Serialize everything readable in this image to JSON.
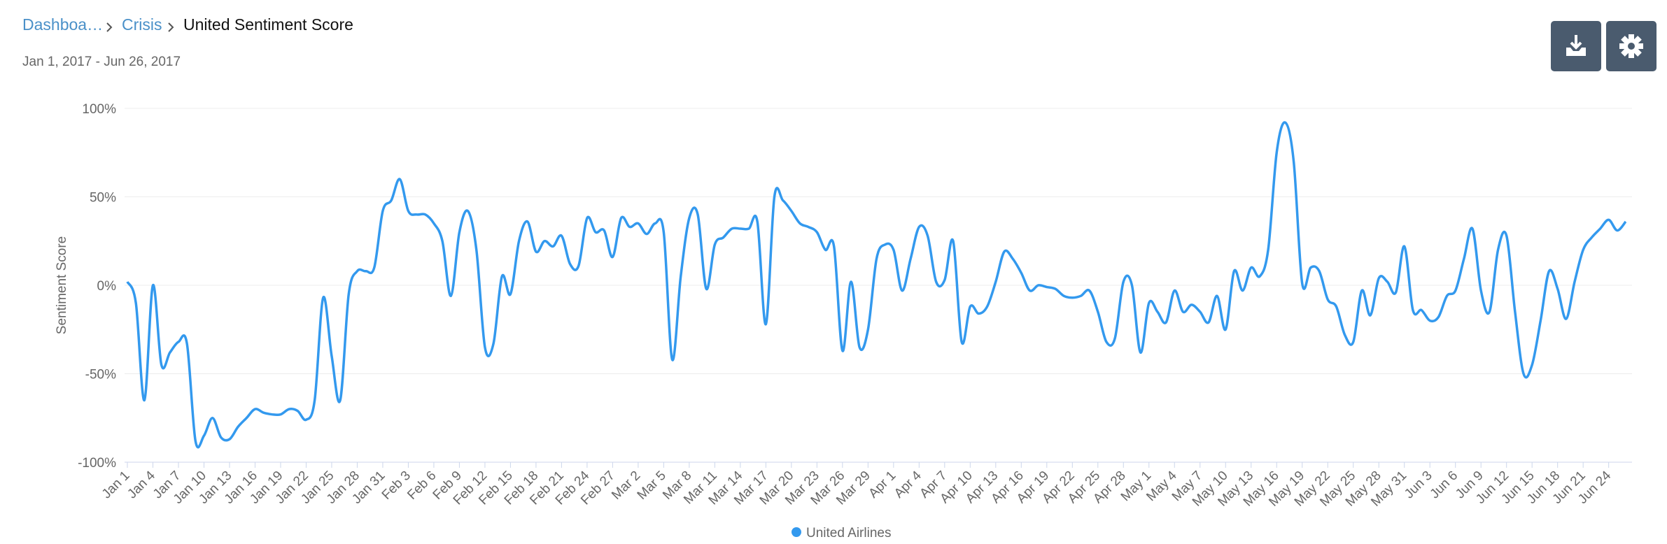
{
  "breadcrumb": [
    "Dashboa…",
    "Crisis",
    "United Sentiment Score"
  ],
  "date_range": "Jan 1, 2017 - Jun 26, 2017",
  "chart_data": {
    "type": "line",
    "y_label": "Sentiment Score",
    "ylim": [
      -100,
      100
    ],
    "yticks": [
      {
        "value": -100,
        "label": "-100%"
      },
      {
        "value": -50,
        "label": "-50%"
      },
      {
        "value": 0,
        "label": "0%"
      },
      {
        "value": 50,
        "label": "50%"
      },
      {
        "value": 100,
        "label": "100%"
      }
    ],
    "grid": true,
    "categories": [
      "Jan 1",
      null,
      null,
      "Jan 4",
      null,
      null,
      "Jan 7",
      null,
      null,
      "Jan 10",
      null,
      null,
      "Jan 13",
      null,
      null,
      "Jan 16",
      null,
      null,
      "Jan 19",
      null,
      null,
      "Jan 22",
      null,
      null,
      "Jan 25",
      null,
      null,
      "Jan 28",
      null,
      null,
      "Jan 31",
      null,
      null,
      "Feb 3",
      null,
      null,
      "Feb 6",
      null,
      null,
      "Feb 9",
      null,
      null,
      "Feb 12",
      null,
      null,
      "Feb 15",
      null,
      null,
      "Feb 18",
      null,
      null,
      "Feb 21",
      null,
      null,
      "Feb 24",
      null,
      null,
      "Feb 27",
      null,
      null,
      "Mar 2",
      null,
      null,
      "Mar 5",
      null,
      null,
      "Mar 8",
      null,
      null,
      "Mar 11",
      null,
      null,
      "Mar 14",
      null,
      null,
      "Mar 17",
      null,
      null,
      "Mar 20",
      null,
      null,
      "Mar 23",
      null,
      null,
      "Mar 26",
      null,
      null,
      "Mar 29",
      null,
      null,
      "Apr 1",
      null,
      null,
      "Apr 4",
      null,
      null,
      "Apr 7",
      null,
      null,
      "Apr 10",
      null,
      null,
      "Apr 13",
      null,
      null,
      "Apr 16",
      null,
      null,
      "Apr 19",
      null,
      null,
      "Apr 22",
      null,
      null,
      "Apr 25",
      null,
      null,
      "Apr 28",
      null,
      null,
      "May 1",
      null,
      null,
      "May 4",
      null,
      null,
      "May 7",
      null,
      null,
      "May 10",
      null,
      null,
      "May 13",
      null,
      null,
      "May 16",
      null,
      null,
      "May 19",
      null,
      null,
      "May 22",
      null,
      null,
      "May 25",
      null,
      null,
      "May 28",
      null,
      null,
      "May 31",
      null,
      null,
      "Jun 3",
      null,
      null,
      "Jun 6",
      null,
      null,
      "Jun 9",
      null,
      null,
      "Jun 12",
      null,
      null,
      "Jun 15",
      null,
      null,
      "Jun 18",
      null,
      null,
      "Jun 21",
      null,
      null,
      "Jun 24",
      null,
      null
    ],
    "series": [
      {
        "name": "United Airlines",
        "color": "#3399ee",
        "values": [
          2,
          -10,
          -65,
          0,
          -45,
          -38,
          -32,
          -33,
          -88,
          -85,
          -75,
          -86,
          -87,
          -80,
          -75,
          -70,
          -72,
          -73,
          -73,
          -70,
          -71,
          -76,
          -65,
          -7,
          -40,
          -65,
          -5,
          8,
          8,
          10,
          42,
          48,
          60,
          42,
          40,
          40,
          35,
          25,
          -6,
          30,
          42,
          20,
          -35,
          -33,
          5,
          -5,
          25,
          36,
          19,
          25,
          22,
          28,
          12,
          11,
          38,
          30,
          31,
          16,
          38,
          33,
          35,
          29,
          35,
          30,
          -42,
          5,
          38,
          40,
          -2,
          23,
          27,
          32,
          32,
          32,
          36,
          -22,
          50,
          48,
          42,
          35,
          33,
          30,
          20,
          22,
          -37,
          2,
          -35,
          -25,
          15,
          23,
          20,
          -3,
          15,
          33,
          28,
          2,
          3,
          25,
          -32,
          -12,
          -16,
          -12,
          2,
          19,
          15,
          7,
          -3,
          0,
          -1,
          -2,
          -6,
          -7,
          -6,
          -3,
          -15,
          -32,
          -30,
          2,
          0,
          -38,
          -10,
          -15,
          -21,
          -3,
          -15,
          -11,
          -15,
          -21,
          -6,
          -25,
          8,
          -3,
          10,
          5,
          20,
          75,
          92,
          70,
          1,
          10,
          8,
          -8,
          -12,
          -28,
          -32,
          -3,
          -17,
          4,
          2,
          -4,
          22,
          -14,
          -14,
          -20,
          -18,
          -6,
          -3,
          15,
          32,
          -3,
          -15,
          20,
          28,
          -15,
          -50,
          -45,
          -20,
          8,
          -2,
          -19,
          2,
          20,
          27,
          32,
          37,
          31,
          36
        ]
      }
    ]
  }
}
